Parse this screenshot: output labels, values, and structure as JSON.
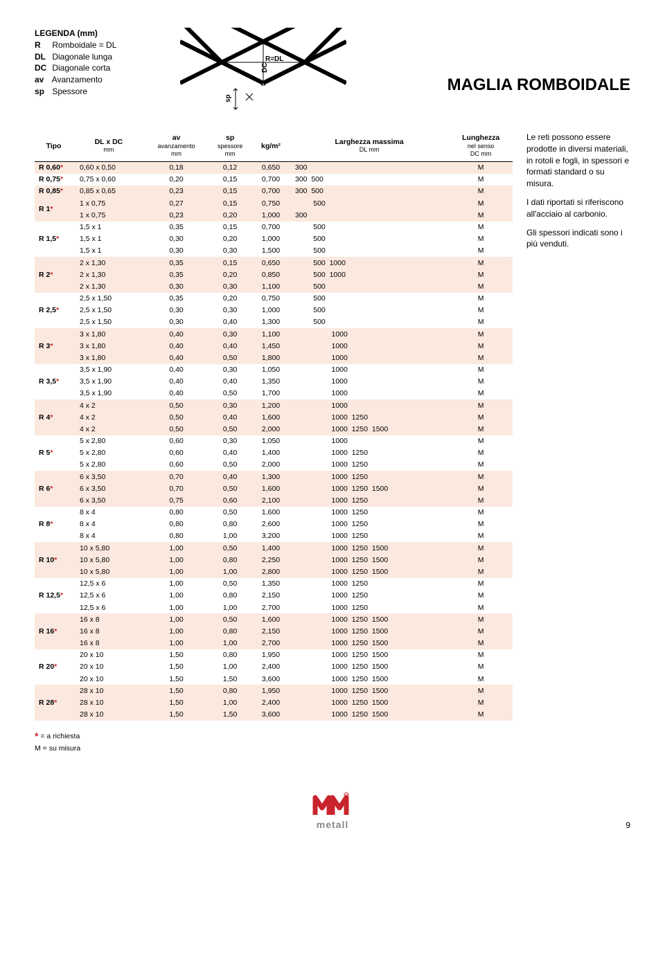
{
  "legenda": {
    "title": "LEGENDA (mm)",
    "items": [
      {
        "k": "R",
        "v": "Romboidale = DL"
      },
      {
        "k": "DL",
        "v": "Diagonale lunga"
      },
      {
        "k": "DC",
        "v": "Diagonale corta"
      },
      {
        "k": "av",
        "v": "Avanzamento"
      },
      {
        "k": "sp",
        "v": "Spessore"
      }
    ]
  },
  "main_title": "MAGLIA ROMBOIDALE",
  "headers": {
    "tipo": "Tipo",
    "dldc": "DL x DC",
    "dldc_sub": "mm",
    "av": "av",
    "av2": "avanzamento",
    "av_sub": "mm",
    "sp": "sp",
    "sp2": "spessore",
    "sp_sub": "mm",
    "kg": "kg/m²",
    "larg": "Larghezza massima",
    "larg_sub": "DL mm",
    "lung": "Lunghezza",
    "lung2": "nel senso",
    "lung_sub": "DC mm"
  },
  "side": {
    "p1": "Le reti possono essere prodotte in diversi materiali, in rotoli e fogli, in spessori e formati standard o su misura.",
    "p2": "I dati riportati si riferiscono all'acciaio al carbonio.",
    "p3": "Gli spessori indicati sono i più venduti."
  },
  "footnotes": {
    "f1": "= a richiesta",
    "f2": "M  = su misura"
  },
  "brand": "metall",
  "pagenum": "9",
  "groups": [
    {
      "tipo": "R 0,60",
      "ast": "*",
      "shade": 1,
      "rows": [
        {
          "dldc": "0,60 x 0,50",
          "av": "0,18",
          "sp": "0,12",
          "kg": "0,650",
          "larg": "300",
          "lung": "M"
        }
      ]
    },
    {
      "tipo": "R 0,75",
      "ast": "*",
      "shade": 0,
      "rows": [
        {
          "dldc": "0,75 x 0,60",
          "av": "0,20",
          "sp": "0,15",
          "kg": "0,700",
          "larg": "300  500",
          "lung": "M"
        }
      ]
    },
    {
      "tipo": "R 0,85",
      "ast": "*",
      "shade": 1,
      "rows": [
        {
          "dldc": "0,85 x 0,65",
          "av": "0,23",
          "sp": "0,15",
          "kg": "0,700",
          "larg": "300  500",
          "lung": "M"
        }
      ]
    },
    {
      "tipo": "R 1",
      "ast": "*",
      "shade": 1,
      "rows": [
        {
          "dldc": "1 x 0,75",
          "av": "0,27",
          "sp": "0,15",
          "kg": "0,750",
          "larg": "         500",
          "lung": "M"
        },
        {
          "dldc": "1 x 0,75",
          "av": "0,23",
          "sp": "0,20",
          "kg": "1,000",
          "larg": "300",
          "lung": "M"
        }
      ]
    },
    {
      "tipo": "R 1,5",
      "ast": "*",
      "shade": 0,
      "rows": [
        {
          "dldc": "1,5 x 1",
          "av": "0,35",
          "sp": "0,15",
          "kg": "0,700",
          "larg": "         500",
          "lung": "M"
        },
        {
          "dldc": "1,5 x 1",
          "av": "0,30",
          "sp": "0,20",
          "kg": "1,000",
          "larg": "         500",
          "lung": "M"
        },
        {
          "dldc": "1,5 x 1",
          "av": "0,30",
          "sp": "0,30",
          "kg": "1,500",
          "larg": "         500",
          "lung": "M"
        }
      ]
    },
    {
      "tipo": "R 2",
      "ast": "*",
      "shade": 1,
      "rows": [
        {
          "dldc": "2 x 1,30",
          "av": "0,35",
          "sp": "0,15",
          "kg": "0,650",
          "larg": "         500  1000",
          "lung": "M"
        },
        {
          "dldc": "2 x 1,30",
          "av": "0,35",
          "sp": "0,20",
          "kg": "0,850",
          "larg": "         500  1000",
          "lung": "M"
        },
        {
          "dldc": "2 x 1,30",
          "av": "0,30",
          "sp": "0,30",
          "kg": "1,100",
          "larg": "         500",
          "lung": "M"
        }
      ]
    },
    {
      "tipo": "R 2,5",
      "ast": "*",
      "shade": 0,
      "rows": [
        {
          "dldc": "2,5 x 1,50",
          "av": "0,35",
          "sp": "0,20",
          "kg": "0,750",
          "larg": "         500",
          "lung": "M"
        },
        {
          "dldc": "2,5 x 1,50",
          "av": "0,30",
          "sp": "0,30",
          "kg": "1,000",
          "larg": "         500",
          "lung": "M"
        },
        {
          "dldc": "2,5 x 1,50",
          "av": "0,30",
          "sp": "0,40",
          "kg": "1,300",
          "larg": "         500",
          "lung": "M"
        }
      ]
    },
    {
      "tipo": "R 3",
      "ast": "*",
      "shade": 1,
      "rows": [
        {
          "dldc": "3 x 1,80",
          "av": "0,40",
          "sp": "0,30",
          "kg": "1,100",
          "larg": "                  1000",
          "lung": "M"
        },
        {
          "dldc": "3 x 1,80",
          "av": "0,40",
          "sp": "0,40",
          "kg": "1,450",
          "larg": "                  1000",
          "lung": "M"
        },
        {
          "dldc": "3 x 1,80",
          "av": "0,40",
          "sp": "0,50",
          "kg": "1,800",
          "larg": "                  1000",
          "lung": "M"
        }
      ]
    },
    {
      "tipo": "R 3,5",
      "ast": "*",
      "shade": 0,
      "rows": [
        {
          "dldc": "3,5 x 1,90",
          "av": "0,40",
          "sp": "0,30",
          "kg": "1,050",
          "larg": "                  1000",
          "lung": "M"
        },
        {
          "dldc": "3,5 x 1,90",
          "av": "0,40",
          "sp": "0,40",
          "kg": "1,350",
          "larg": "                  1000",
          "lung": "M"
        },
        {
          "dldc": "3,5 x 1,90",
          "av": "0,40",
          "sp": "0,50",
          "kg": "1,700",
          "larg": "                  1000",
          "lung": "M"
        }
      ]
    },
    {
      "tipo": "R 4",
      "ast": "*",
      "shade": 1,
      "rows": [
        {
          "dldc": "4 x 2",
          "av": "0,50",
          "sp": "0,30",
          "kg": "1,200",
          "larg": "                  1000",
          "lung": "M"
        },
        {
          "dldc": "4 x 2",
          "av": "0,50",
          "sp": "0,40",
          "kg": "1,600",
          "larg": "                  1000  1250",
          "lung": "M"
        },
        {
          "dldc": "4 x 2",
          "av": "0,50",
          "sp": "0,50",
          "kg": "2,000",
          "larg": "                  1000  1250  1500",
          "lung": "M"
        }
      ]
    },
    {
      "tipo": "R 5",
      "ast": "*",
      "shade": 0,
      "rows": [
        {
          "dldc": "5 x 2,80",
          "av": "0,60",
          "sp": "0,30",
          "kg": "1,050",
          "larg": "                  1000",
          "lung": "M"
        },
        {
          "dldc": "5 x 2,80",
          "av": "0,60",
          "sp": "0,40",
          "kg": "1,400",
          "larg": "                  1000  1250",
          "lung": "M"
        },
        {
          "dldc": "5 x 2,80",
          "av": "0,60",
          "sp": "0,50",
          "kg": "2,000",
          "larg": "                  1000  1250",
          "lung": "M"
        }
      ]
    },
    {
      "tipo": "R 6",
      "ast": "*",
      "shade": 1,
      "rows": [
        {
          "dldc": "6 x 3,50",
          "av": "0,70",
          "sp": "0,40",
          "kg": "1,300",
          "larg": "                  1000  1250",
          "lung": "M"
        },
        {
          "dldc": "6 x 3,50",
          "av": "0,70",
          "sp": "0,50",
          "kg": "1,600",
          "larg": "                  1000  1250  1500",
          "lung": "M"
        },
        {
          "dldc": "6 x 3,50",
          "av": "0,75",
          "sp": "0,60",
          "kg": "2,100",
          "larg": "                  1000  1250",
          "lung": "M"
        }
      ]
    },
    {
      "tipo": "R 8",
      "ast": "*",
      "shade": 0,
      "rows": [
        {
          "dldc": "8 x 4",
          "av": "0,80",
          "sp": "0,50",
          "kg": "1,600",
          "larg": "                  1000  1250",
          "lung": "M"
        },
        {
          "dldc": "8 x 4",
          "av": "0,80",
          "sp": "0,80",
          "kg": "2,600",
          "larg": "                  1000  1250",
          "lung": "M"
        },
        {
          "dldc": "8 x 4",
          "av": "0,80",
          "sp": "1,00",
          "kg": "3,200",
          "larg": "                  1000  1250",
          "lung": "M"
        }
      ]
    },
    {
      "tipo": "R 10",
      "ast": "*",
      "shade": 1,
      "rows": [
        {
          "dldc": "10 x 5,80",
          "av": "1,00",
          "sp": "0,50",
          "kg": "1,400",
          "larg": "                  1000  1250  1500",
          "lung": "M"
        },
        {
          "dldc": "10 x 5,80",
          "av": "1,00",
          "sp": "0,80",
          "kg": "2,250",
          "larg": "                  1000  1250  1500",
          "lung": "M"
        },
        {
          "dldc": "10 x 5,80",
          "av": "1,00",
          "sp": "1,00",
          "kg": "2,800",
          "larg": "                  1000  1250  1500",
          "lung": "M"
        }
      ]
    },
    {
      "tipo": "R 12,5",
      "ast": "*",
      "shade": 0,
      "rows": [
        {
          "dldc": "12,5 x 6",
          "av": "1,00",
          "sp": "0,50",
          "kg": "1,350",
          "larg": "                  1000  1250",
          "lung": "M"
        },
        {
          "dldc": "12,5 x 6",
          "av": "1,00",
          "sp": "0,80",
          "kg": "2,150",
          "larg": "                  1000  1250",
          "lung": "M"
        },
        {
          "dldc": "12,5 x 6",
          "av": "1,00",
          "sp": "1,00",
          "kg": "2,700",
          "larg": "                  1000  1250",
          "lung": "M"
        }
      ]
    },
    {
      "tipo": "R 16",
      "ast": "*",
      "shade": 1,
      "rows": [
        {
          "dldc": "16 x 8",
          "av": "1,00",
          "sp": "0,50",
          "kg": "1,600",
          "larg": "                  1000  1250  1500",
          "lung": "M"
        },
        {
          "dldc": "16 x 8",
          "av": "1,00",
          "sp": "0,80",
          "kg": "2,150",
          "larg": "                  1000  1250  1500",
          "lung": "M"
        },
        {
          "dldc": "16 x 8",
          "av": "1,00",
          "sp": "1,00",
          "kg": "2,700",
          "larg": "                  1000  1250  1500",
          "lung": "M"
        }
      ]
    },
    {
      "tipo": "R 20",
      "ast": "*",
      "shade": 0,
      "rows": [
        {
          "dldc": "20 x 10",
          "av": "1,50",
          "sp": "0,80",
          "kg": "1,950",
          "larg": "                  1000  1250  1500",
          "lung": "M"
        },
        {
          "dldc": "20 x 10",
          "av": "1,50",
          "sp": "1,00",
          "kg": "2,400",
          "larg": "                  1000  1250  1500",
          "lung": "M"
        },
        {
          "dldc": "20 x 10",
          "av": "1,50",
          "sp": "1,50",
          "kg": "3,600",
          "larg": "                  1000  1250  1500",
          "lung": "M"
        }
      ]
    },
    {
      "tipo": "R 28",
      "ast": "*",
      "shade": 1,
      "rows": [
        {
          "dldc": "28 x 10",
          "av": "1,50",
          "sp": "0,80",
          "kg": "1,950",
          "larg": "                  1000  1250  1500",
          "lung": "M"
        },
        {
          "dldc": "28 x 10",
          "av": "1,50",
          "sp": "1,00",
          "kg": "2,400",
          "larg": "                  1000  1250  1500",
          "lung": "M"
        },
        {
          "dldc": "28 x 10",
          "av": "1,50",
          "sp": "1,50",
          "kg": "3,600",
          "larg": "                  1000  1250  1500",
          "lung": "M"
        }
      ]
    }
  ]
}
